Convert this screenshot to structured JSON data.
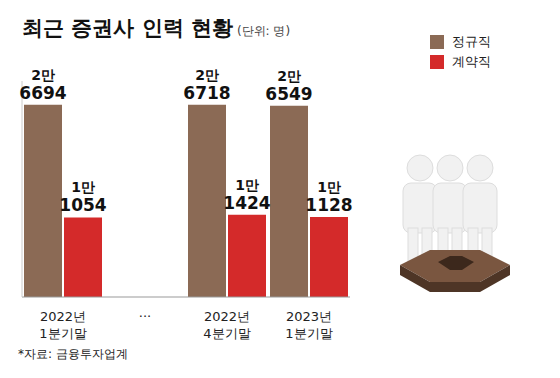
{
  "chart_data": {
    "type": "bar",
    "title": "최근 증권사 인력 현황",
    "subtitle": "(단위: 명)",
    "annotations": [
      "*자료: 금융투자업계"
    ],
    "categories": [
      "2022년 1분기말",
      "···",
      "2022년 4분기말",
      "2023년 1분기말"
    ],
    "series": [
      {
        "name": "정규직",
        "color": "#8b6a55",
        "values": [
          26694,
          null,
          26718,
          26549
        ],
        "value_labels": [
          "2만 6694",
          null,
          "2만 6718",
          "2만 6549"
        ]
      },
      {
        "name": "계약직",
        "color": "#d42a2a",
        "values": [
          11054,
          null,
          11424,
          11128
        ],
        "value_labels": [
          "1만 1054",
          null,
          "1만 1424",
          "1만 1128"
        ]
      }
    ],
    "ylim": [
      0,
      30000
    ],
    "yticks": [
      0,
      10000,
      20000,
      30000
    ],
    "grid": false,
    "legend": "upper right",
    "data_labels": true,
    "tick_labels": "x"
  }
}
